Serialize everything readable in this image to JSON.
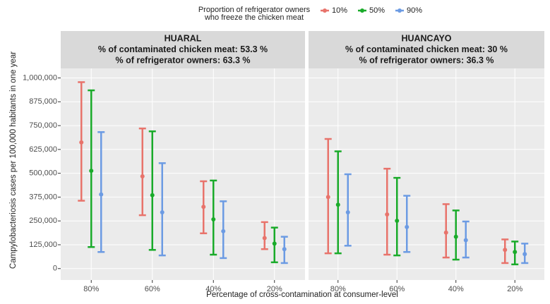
{
  "chart_data": {
    "type": "errorbar",
    "legend_title": [
      "Proportion of refrigerator owners",
      "who freeze the chicken meat"
    ],
    "y_label": "Campylobacteriosis cases per 100,000 habitants in one year",
    "x_label": "Percentage of cross-contamination at consumer-level",
    "categories": [
      "80%",
      "60%",
      "40%",
      "20%"
    ],
    "ylim": [
      -60000,
      1050000
    ],
    "yticks": [
      0,
      {
        "value": 125000,
        "label": "125,000"
      },
      {
        "value": 250000,
        "label": "250,000"
      },
      {
        "value": 375000,
        "label": "375,000"
      },
      {
        "value": 500000,
        "label": "500,000"
      },
      {
        "value": 625000,
        "label": "625,000"
      },
      {
        "value": 750000,
        "label": "750,000"
      },
      {
        "value": 875000,
        "label": "875,000"
      },
      {
        "value": 1000000,
        "label": "1,000,000"
      }
    ],
    "grid": true,
    "series": [
      {
        "name": "10%",
        "color": "#e8736b"
      },
      {
        "name": "50%",
        "color": "#1aab2a"
      },
      {
        "name": "90%",
        "color": "#6c9be3"
      }
    ],
    "panels": [
      {
        "title": [
          "HUARAL",
          "% of contaminated chicken meat: 53.3 %",
          "% of refrigerator owners: 63.3 %"
        ],
        "series": [
          {
            "values": [
              662000,
              484000,
              324000,
              160000
            ],
            "lower": [
              356000,
              280000,
              185000,
              102000
            ],
            "upper": [
              978000,
              735000,
              458000,
              244000
            ]
          },
          {
            "values": [
              513000,
              385000,
              258000,
              131000
            ],
            "lower": [
              113000,
              98000,
              73000,
              33000
            ],
            "upper": [
              935000,
              720000,
              462000,
              215000
            ]
          },
          {
            "values": [
              389000,
              295000,
              196000,
              102000
            ],
            "lower": [
              87000,
              69000,
              55000,
              29000
            ],
            "upper": [
              716000,
              553000,
              353000,
              167000
            ]
          }
        ]
      },
      {
        "title": [
          "HUANCAYO",
          "% of contaminated chicken meat: 30 %",
          "% of refrigerator owners: 36.3 %"
        ],
        "series": [
          {
            "values": [
              375000,
              284000,
              189000,
              98000
            ],
            "lower": [
              80000,
              73000,
              58000,
              29000
            ],
            "upper": [
              680000,
              524000,
              338000,
              153000
            ]
          },
          {
            "values": [
              335000,
              251000,
              167000,
              87000
            ],
            "lower": [
              80000,
              69000,
              47000,
              22000
            ],
            "upper": [
              615000,
              476000,
              305000,
              142000
            ]
          },
          {
            "values": [
              295000,
              218000,
              149000,
              76000
            ],
            "lower": [
              120000,
              87000,
              58000,
              29000
            ],
            "upper": [
              495000,
              382000,
              247000,
              131000
            ]
          }
        ]
      }
    ]
  }
}
